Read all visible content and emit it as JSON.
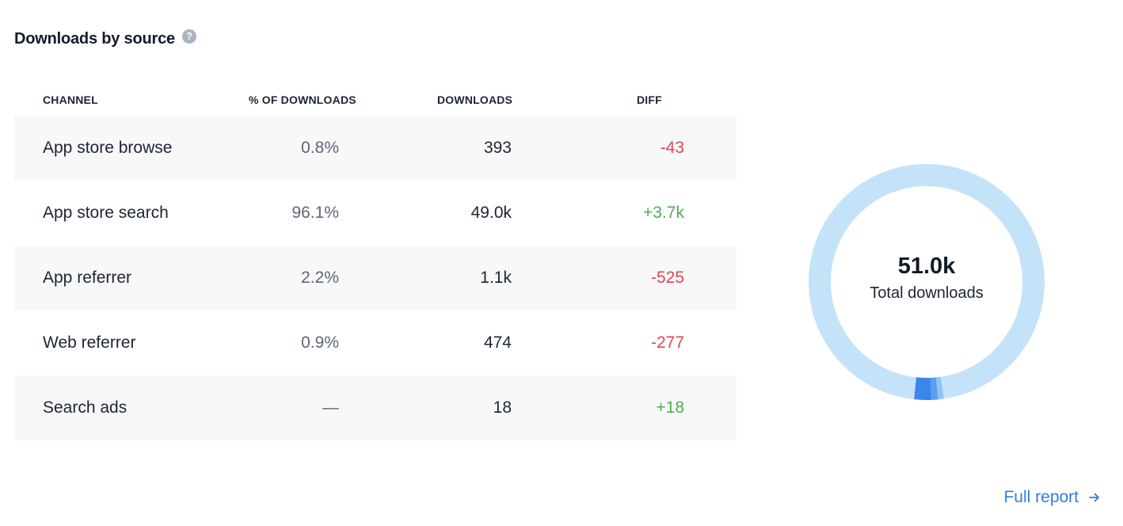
{
  "header": {
    "title": "Downloads by source",
    "help_glyph": "?",
    "help_icon": "question-circle-icon"
  },
  "table": {
    "columns": [
      "CHANNEL",
      "% OF DOWNLOADS",
      "DOWNLOADS",
      "DIFF"
    ],
    "rows": [
      {
        "channel": "App store browse",
        "pct": "0.8%",
        "downloads": "393",
        "diff": "-43",
        "trend": "negative"
      },
      {
        "channel": "App store search",
        "pct": "96.1%",
        "downloads": "49.0k",
        "diff": "+3.7k",
        "trend": "positive"
      },
      {
        "channel": "App referrer",
        "pct": "2.2%",
        "downloads": "1.1k",
        "diff": "-525",
        "trend": "negative"
      },
      {
        "channel": "Web referrer",
        "pct": "0.9%",
        "downloads": "474",
        "diff": "-277",
        "trend": "negative"
      },
      {
        "channel": "Search ads",
        "pct": "—",
        "downloads": "18",
        "diff": "+18",
        "trend": "positive"
      }
    ]
  },
  "donut": {
    "total_value": "51.0k",
    "total_label": "Total downloads",
    "segments": [
      {
        "channel": "App store browse",
        "percent": 0.8,
        "color": "#8ec5f2"
      },
      {
        "channel": "App store search",
        "percent": 96.1,
        "color": "#c4e3f9"
      },
      {
        "channel": "App referrer",
        "percent": 2.2,
        "color": "#3b86ea"
      },
      {
        "channel": "Web referrer",
        "percent": 0.9,
        "color": "#5c9df0"
      },
      {
        "channel": "Search ads",
        "percent": 0.03,
        "color": "#2f6fd0"
      }
    ]
  },
  "footer": {
    "full_report_label": "Full report",
    "arrow_icon": "arrow-right-icon"
  },
  "colors": {
    "negative": "#e04754",
    "positive": "#4caf50",
    "link": "#2f7fd8",
    "row_shade": "#f8f8f9"
  }
}
